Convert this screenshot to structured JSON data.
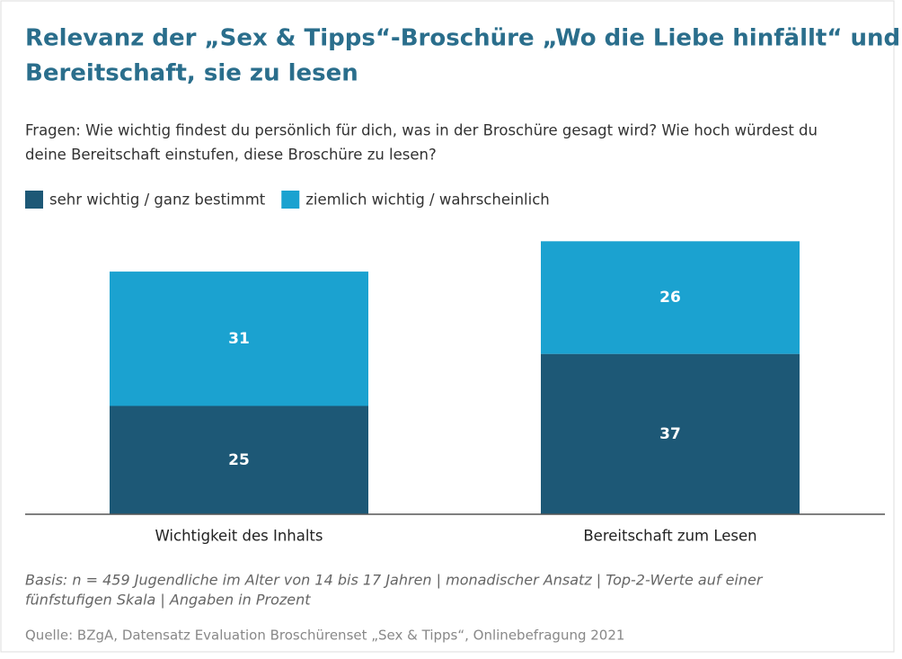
{
  "chart_data": {
    "type": "stacked-bar",
    "title": [
      "Relevanz der „Sex & Tipps“-Broschüre „Wo die Liebe hinfällt“ und",
      "Bereitschaft, sie zu lesen"
    ],
    "subtitle": [
      "Fragen: Wie wichtig findest du persönlich für dich, was in der Broschüre gesagt wird? Wie hoch würdest du",
      "deine Bereitschaft einstufen, diese Broschüre zu lesen?"
    ],
    "categories": [
      "Wichtigkeit des Inhalts",
      "Bereitschaft zum Lesen"
    ],
    "series": [
      {
        "name": "sehr wichtig / ganz bestimmt",
        "color": "#1d5876",
        "values": [
          25,
          37
        ]
      },
      {
        "name": "ziemlich wichtig / wahrscheinlich",
        "color": "#1ba2d0",
        "values": [
          31,
          26
        ]
      }
    ],
    "footnote": [
      "Basis: n = 459 Jugendliche im Alter von 14 bis 17 Jahren | monadischer Ansatz | Top-2-Werte auf einer",
      "fünfstufigen Skala | Angaben in Prozent"
    ],
    "source": "Quelle: BZgA, Datensatz Evaluation Broschürenset „Sex & Tipps“, Onlinebefragung 2021"
  }
}
